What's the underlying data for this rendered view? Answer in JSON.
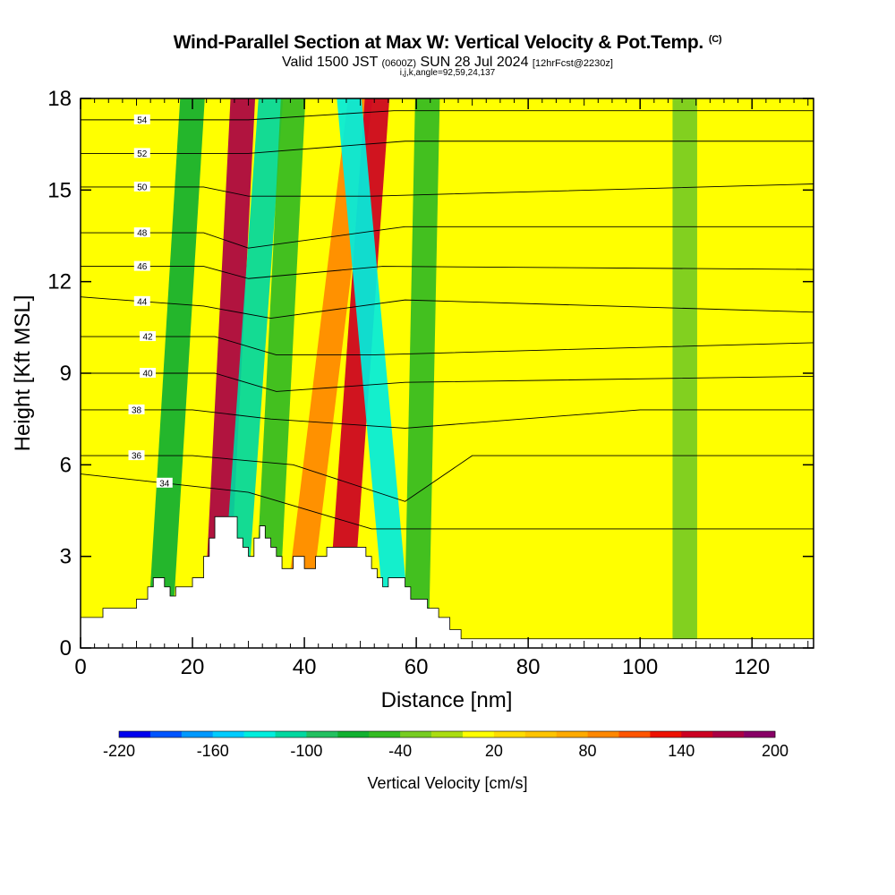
{
  "header": {
    "title": "Wind-Parallel Section at Max W: Vertical Velocity & Pot.Temp.",
    "title_mark": "(C)",
    "valid_text": "Valid 1500 JST",
    "valid_utc": "(0600Z)",
    "valid_date": "SUN 28 Jul 2024",
    "forecast": "[12hrFcst@2230z]",
    "indices": "i,j,k,angle=92,59,24,137"
  },
  "chart_data": {
    "type": "heatmap",
    "title": "Wind-Parallel Section at Max W: Vertical Velocity & Pot.Temp.",
    "xlabel": "Distance [nm]",
    "ylabel": "Height [Kft MSL]",
    "xlim": [
      0,
      131
    ],
    "ylim": [
      0,
      18
    ],
    "x_ticks": [
      0,
      20,
      40,
      60,
      80,
      100,
      120
    ],
    "y_ticks": [
      0,
      3,
      6,
      9,
      12,
      15,
      18
    ],
    "x_tick_labels": [
      "0",
      "20",
      "40",
      "60",
      "80",
      "100",
      "120"
    ],
    "y_tick_labels": [
      "0",
      "3",
      "6",
      "9",
      "12",
      "15",
      "18"
    ],
    "colorbar": {
      "label": "Vertical Velocity [cm/s]",
      "min": -220,
      "max": 200,
      "step": 20,
      "tick_values": [
        -220,
        -160,
        -100,
        -40,
        20,
        80,
        140,
        200
      ],
      "tick_labels": [
        "-220",
        "-160",
        "-100",
        "-40",
        "20",
        "80",
        "140",
        "200"
      ],
      "colors": [
        "#0000ee",
        "#0055ff",
        "#0099ff",
        "#00ccff",
        "#00eedd",
        "#00d8a0",
        "#22c060",
        "#11b030",
        "#33bb22",
        "#77cc22",
        "#aadd11",
        "#ffff00",
        "#ffdd00",
        "#ffc400",
        "#ffaa00",
        "#ff8800",
        "#ff5500",
        "#ee1100",
        "#cc0022",
        "#aa0044",
        "#880066"
      ]
    },
    "terrain_profile": [
      [
        0,
        1.0
      ],
      [
        4,
        1.0
      ],
      [
        4,
        1.3
      ],
      [
        10,
        1.3
      ],
      [
        10,
        1.6
      ],
      [
        12,
        1.6
      ],
      [
        12,
        2.0
      ],
      [
        13,
        2.0
      ],
      [
        13,
        2.3
      ],
      [
        15,
        2.3
      ],
      [
        15,
        2.0
      ],
      [
        16,
        2.0
      ],
      [
        16,
        1.7
      ],
      [
        17,
        1.7
      ],
      [
        17,
        2.0
      ],
      [
        20,
        2.0
      ],
      [
        20,
        2.3
      ],
      [
        22,
        2.3
      ],
      [
        22,
        3.0
      ],
      [
        23,
        3.0
      ],
      [
        23,
        3.6
      ],
      [
        24,
        3.6
      ],
      [
        24,
        4.3
      ],
      [
        28,
        4.3
      ],
      [
        28,
        3.6
      ],
      [
        29,
        3.6
      ],
      [
        29,
        3.3
      ],
      [
        30,
        3.3
      ],
      [
        30,
        3.0
      ],
      [
        31,
        3.0
      ],
      [
        31,
        3.6
      ],
      [
        32,
        3.6
      ],
      [
        32,
        4.0
      ],
      [
        33,
        4.0
      ],
      [
        33,
        3.6
      ],
      [
        34,
        3.6
      ],
      [
        34,
        3.3
      ],
      [
        35,
        3.3
      ],
      [
        35,
        3.0
      ],
      [
        36,
        3.0
      ],
      [
        36,
        2.6
      ],
      [
        38,
        2.6
      ],
      [
        38,
        3.0
      ],
      [
        40,
        3.0
      ],
      [
        40,
        2.6
      ],
      [
        42,
        2.6
      ],
      [
        42,
        3.0
      ],
      [
        44,
        3.0
      ],
      [
        44,
        3.3
      ],
      [
        51,
        3.3
      ],
      [
        51,
        3.0
      ],
      [
        52,
        3.0
      ],
      [
        52,
        2.6
      ],
      [
        53,
        2.6
      ],
      [
        53,
        2.3
      ],
      [
        54,
        2.3
      ],
      [
        54,
        2.0
      ],
      [
        55,
        2.0
      ],
      [
        55,
        2.3
      ],
      [
        58,
        2.3
      ],
      [
        58,
        2.0
      ],
      [
        59,
        2.0
      ],
      [
        59,
        1.6
      ],
      [
        62,
        1.6
      ],
      [
        62,
        1.3
      ],
      [
        64,
        1.3
      ],
      [
        64,
        1.0
      ],
      [
        66,
        1.0
      ],
      [
        66,
        0.6
      ],
      [
        68,
        0.6
      ],
      [
        68,
        0.3
      ],
      [
        131,
        0.3
      ]
    ],
    "wind_bands": [
      {
        "x_bottom": 24,
        "x_top": 29,
        "value": 170
      },
      {
        "x_bottom": 27,
        "x_top": 34,
        "value": -110
      },
      {
        "x_bottom": 14,
        "x_top": 20,
        "value": -80
      },
      {
        "x_bottom": 33,
        "x_top": 38,
        "value": -60
      },
      {
        "x_bottom": 38,
        "x_top": 50,
        "value": 80
      },
      {
        "x_bottom": 46,
        "x_top": 53,
        "value": 140
      },
      {
        "x_bottom": 57,
        "x_top": 48,
        "value": -130
      },
      {
        "x_bottom": 60,
        "x_top": 62,
        "value": -50
      },
      {
        "x_bottom": 108,
        "x_top": 108,
        "value": -30
      }
    ],
    "isentropes": [
      {
        "label": "34",
        "value": 34,
        "points": [
          [
            0,
            5.7
          ],
          [
            30,
            5.1
          ],
          [
            52,
            3.9
          ],
          [
            131,
            3.9
          ]
        ]
      },
      {
        "label": "36",
        "value": 36,
        "points": [
          [
            0,
            6.3
          ],
          [
            20,
            6.3
          ],
          [
            38,
            6.0
          ],
          [
            58,
            4.8
          ],
          [
            70,
            6.3
          ],
          [
            131,
            6.3
          ]
        ]
      },
      {
        "label": "38",
        "value": 38,
        "points": [
          [
            0,
            7.8
          ],
          [
            20,
            7.8
          ],
          [
            34,
            7.5
          ],
          [
            58,
            7.2
          ],
          [
            100,
            7.8
          ],
          [
            131,
            7.8
          ]
        ]
      },
      {
        "label": "40",
        "value": 40,
        "points": [
          [
            0,
            9.0
          ],
          [
            24,
            9.0
          ],
          [
            35,
            8.4
          ],
          [
            58,
            8.7
          ],
          [
            131,
            8.9
          ]
        ]
      },
      {
        "label": "42",
        "value": 42,
        "points": [
          [
            0,
            10.2
          ],
          [
            24,
            10.2
          ],
          [
            35,
            9.6
          ],
          [
            52,
            9.6
          ],
          [
            131,
            10.0
          ]
        ]
      },
      {
        "label": "44",
        "value": 44,
        "points": [
          [
            0,
            11.5
          ],
          [
            22,
            11.2
          ],
          [
            34,
            10.8
          ],
          [
            58,
            11.4
          ],
          [
            131,
            11.0
          ]
        ]
      },
      {
        "label": "46",
        "value": 46,
        "points": [
          [
            0,
            12.5
          ],
          [
            22,
            12.5
          ],
          [
            30,
            12.1
          ],
          [
            54,
            12.5
          ],
          [
            131,
            12.4
          ]
        ]
      },
      {
        "label": "48",
        "value": 48,
        "points": [
          [
            0,
            13.6
          ],
          [
            22,
            13.6
          ],
          [
            30,
            13.1
          ],
          [
            58,
            13.8
          ],
          [
            131,
            13.8
          ]
        ]
      },
      {
        "label": "50",
        "value": 50,
        "points": [
          [
            0,
            15.1
          ],
          [
            22,
            15.1
          ],
          [
            30,
            14.8
          ],
          [
            52,
            14.8
          ],
          [
            131,
            15.2
          ]
        ]
      },
      {
        "label": "52",
        "value": 52,
        "points": [
          [
            0,
            16.2
          ],
          [
            22,
            16.2
          ],
          [
            30,
            16.2
          ],
          [
            58,
            16.6
          ],
          [
            131,
            16.6
          ]
        ]
      },
      {
        "label": "54",
        "value": 54,
        "points": [
          [
            0,
            17.3
          ],
          [
            22,
            17.3
          ],
          [
            30,
            17.3
          ],
          [
            56,
            17.6
          ],
          [
            131,
            17.6
          ]
        ]
      }
    ]
  }
}
